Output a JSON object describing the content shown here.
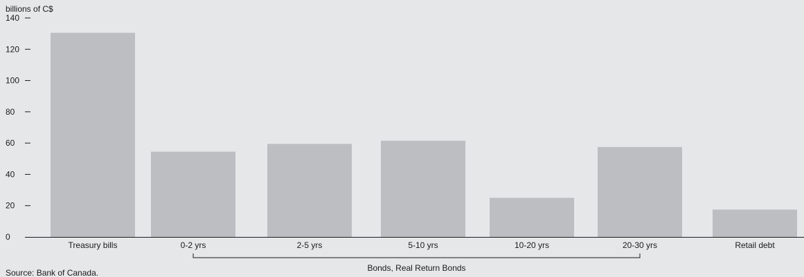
{
  "chart_data": {
    "type": "bar",
    "ylabel": "billions of C$",
    "ylim": [
      0,
      140
    ],
    "yticks": [
      0,
      20,
      40,
      60,
      80,
      100,
      120,
      140
    ],
    "categories": [
      "Treasury bills",
      "0-2 yrs",
      "2-5 yrs",
      "5-10 yrs",
      "10-20 yrs",
      "20-30 yrs",
      "Retail debt"
    ],
    "values": [
      130.5,
      54.5,
      59.5,
      61.5,
      25,
      57.5,
      17.5
    ],
    "group_bracket": {
      "label": "Bonds, Real Return Bonds",
      "from_category": "0-2 yrs",
      "to_category": "20-30 yrs"
    },
    "bar_color": "#bdbec2",
    "background_color": "#e6e7e9",
    "grid": false,
    "source": "Source: Bank of Canada."
  }
}
